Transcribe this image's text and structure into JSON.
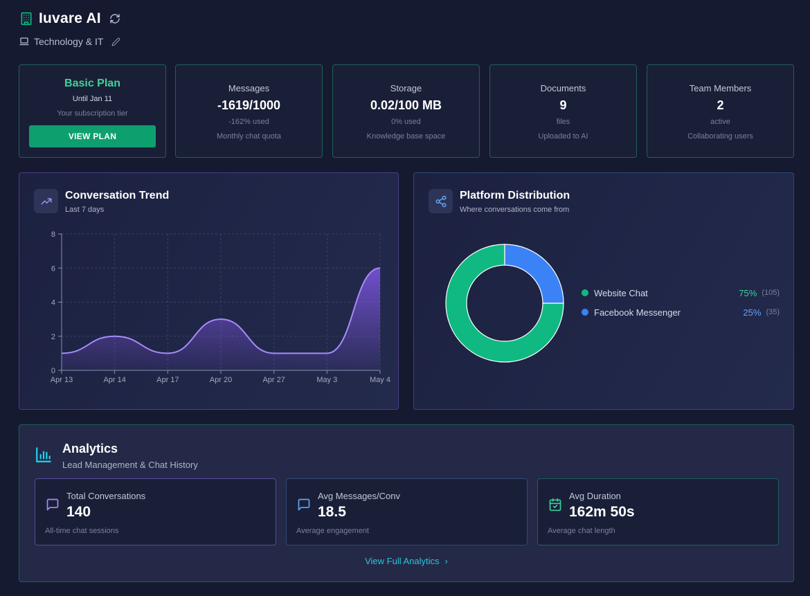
{
  "header": {
    "app_title": "Iuvare AI",
    "industry": "Technology & IT",
    "icons": {
      "brand": "building-icon",
      "refresh": "refresh-icon",
      "laptop": "laptop-icon",
      "edit": "pencil-icon"
    }
  },
  "plan": {
    "name": "Basic Plan",
    "until": "Until Jan 11",
    "description": "Your subscription tier",
    "button_label": "VIEW PLAN"
  },
  "stats": [
    {
      "label": "Messages",
      "value": "-1619/1000",
      "sub": "-162% used",
      "desc": "Monthly chat quota"
    },
    {
      "label": "Storage",
      "value": "0.02/100 MB",
      "sub": "0% used",
      "desc": "Knowledge base space"
    },
    {
      "label": "Documents",
      "value": "9",
      "sub": "files",
      "desc": "Uploaded to AI"
    },
    {
      "label": "Team Members",
      "value": "2",
      "sub": "active",
      "desc": "Collaborating users"
    }
  ],
  "trend": {
    "title": "Conversation Trend",
    "subtitle": "Last 7 days",
    "icon": "trending-up-icon"
  },
  "platform": {
    "title": "Platform Distribution",
    "subtitle": "Where conversations come from",
    "icon": "share-icon"
  },
  "chart_data": [
    {
      "type": "area",
      "title": "Conversation Trend",
      "subtitle": "Last 7 days",
      "categories": [
        "Apr 13",
        "Apr 14",
        "Apr 17",
        "Apr 20",
        "Apr 27",
        "May 3",
        "May 4"
      ],
      "values": [
        1,
        2,
        1,
        3,
        1,
        1,
        6
      ],
      "yticks": [
        0,
        2,
        4,
        6,
        8
      ],
      "ylim": [
        0,
        8
      ],
      "grid": true,
      "line_color": "#a78bfa",
      "fill_color": "#8b5cf6"
    },
    {
      "type": "pie",
      "title": "Platform Distribution",
      "subtitle": "Where conversations come from",
      "donut": true,
      "legend_position": "right",
      "slices": [
        {
          "label": "Website Chat",
          "percent": "75%",
          "count": "(105)",
          "value": 105,
          "color": "#10b981"
        },
        {
          "label": "Facebook Messenger",
          "percent": "25%",
          "count": "(35)",
          "value": 35,
          "color": "#3b82f6"
        }
      ]
    }
  ],
  "analytics": {
    "title": "Analytics",
    "subtitle": "Lead Management & Chat History",
    "icon": "bar-chart-icon",
    "metrics": [
      {
        "label": "Total Conversations",
        "value": "140",
        "desc": "All-time chat sessions",
        "icon": "message-square-icon",
        "color": "#a78bfa"
      },
      {
        "label": "Avg Messages/Conv",
        "value": "18.5",
        "desc": "Average engagement",
        "icon": "message-square-icon",
        "color": "#60a5fa"
      },
      {
        "label": "Avg Duration",
        "value": "162m 50s",
        "desc": "Average chat length",
        "icon": "calendar-icon",
        "color": "#34d399"
      }
    ],
    "link_label": "View Full Analytics"
  },
  "colors": {
    "background": "#151a30",
    "accent_green": "#0e9f6e",
    "accent_cyan": "#2dc5dc",
    "accent_purple": "#a78bfa"
  }
}
